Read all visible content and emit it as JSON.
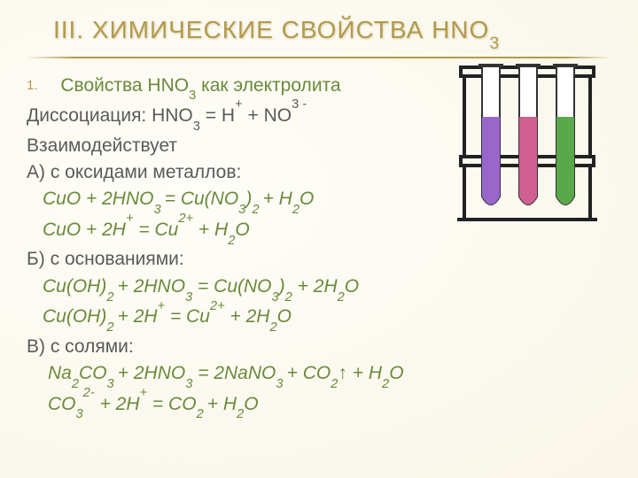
{
  "title_html": "III. ХИМИЧЕСКИЕ СВОЙСТВА HNO<sub>3</sub>",
  "list_number": "1.",
  "subtitle_html": "Свойства HNO<sub>3</sub> как электролита",
  "line_dissoc_html": "Диссоциация: HNO<sub>3</sub> = H<sup>+</sup> + NO<sup>3 -</sup>",
  "line_interact": "Взаимодействует",
  "line_A": "А) с оксидами металлов:",
  "eq_A1_html": "CuO + 2HNO<sub>3 </sub>= Cu(NO<sub>3</sub>)<sub>2 </sub>+ H<sub>2</sub>O",
  "eq_A2_html": "CuO + 2H<sup>+</sup> = Cu<sup>2+</sup> + H<sub>2</sub>O",
  "line_B": "Б) с основаниями:",
  "eq_B1_html": "Cu(OH)<sub>2 </sub>+ 2HNO<sub>3</sub> = Cu(NO<sub>3</sub>)<sub>2</sub> + 2H<sub>2</sub>O",
  "eq_B2_html": "Cu(OH)<sub>2 </sub>+ 2H<sup>+</sup> = Cu<sup>2+</sup> + 2H<sub>2</sub>O",
  "line_V": "В) с солями:",
  "eq_V1_html": "Na<sub>2</sub>CO<sub>3 </sub>+ 2HNO<sub>3</sub> = 2NaNO<sub>3 </sub>+ CO<sub>2</sub>↑ + H<sub>2</sub>O",
  "eq_V2_html": "CO<sub>3</sub><sup>2-</sup> + 2H<sup>+</sup> = CO<sub>2 </sub>+ H<sub>2</sub>O",
  "colors": {
    "title": "#b49a4a",
    "body_text": "#5a5a5a",
    "equation": "#6a8a3a",
    "background": "#fdfcf4"
  },
  "typography": {
    "title_fontsize": 28,
    "body_fontsize": 21,
    "font_family": "Arial"
  },
  "illustration": {
    "type": "test-tubes",
    "rack_color": "#333333",
    "tube_colors": [
      "#9966cc",
      "#d06090",
      "#5aa84a"
    ],
    "tube_count": 3
  }
}
